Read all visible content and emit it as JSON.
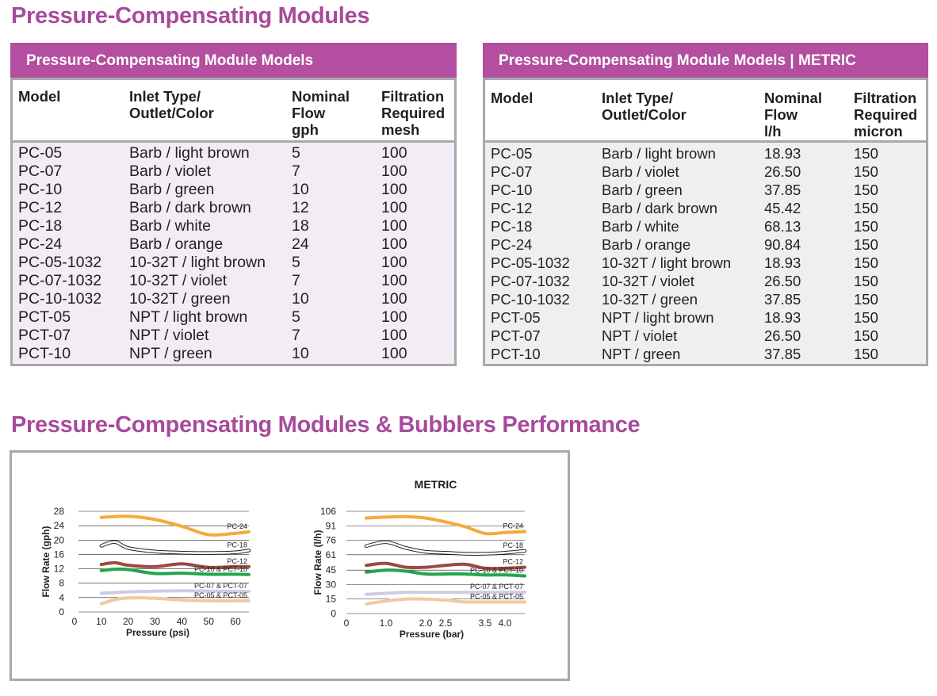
{
  "page": {
    "title": "Pressure-Compensating Modules",
    "performance_title": "Pressure-Compensating Modules & Bubblers Performance"
  },
  "table_us": {
    "title": "Pressure-Compensating Module Models",
    "columns": [
      "Model",
      "Inlet Type/\nOutlet/Color",
      "Nominal\nFlow\ngph",
      "Filtration\nRequired\nmesh"
    ],
    "rows": [
      [
        "PC-05",
        "Barb / light brown",
        "5",
        "100"
      ],
      [
        "PC-07",
        "Barb / violet",
        "7",
        "100"
      ],
      [
        "PC-10",
        "Barb / green",
        "10",
        "100"
      ],
      [
        "PC-12",
        "Barb / dark brown",
        "12",
        "100"
      ],
      [
        "PC-18",
        "Barb / white",
        "18",
        "100"
      ],
      [
        "PC-24",
        "Barb / orange",
        "24",
        "100"
      ],
      [
        "PC-05-1032",
        "10-32T / light brown",
        "5",
        "100"
      ],
      [
        "PC-07-1032",
        "10-32T / violet",
        "7",
        "100"
      ],
      [
        "PC-10-1032",
        "10-32T / green",
        "10",
        "100"
      ],
      [
        "PCT-05",
        "NPT / light brown",
        "5",
        "100"
      ],
      [
        "PCT-07",
        "NPT / violet",
        "7",
        "100"
      ],
      [
        "PCT-10",
        "NPT / green",
        "10",
        "100"
      ]
    ]
  },
  "table_metric": {
    "title": "Pressure-Compensating Module Models | METRIC",
    "columns": [
      "Model",
      "Inlet Type/\nOutlet/Color",
      "Nominal\nFlow\nl/h",
      "Filtration\nRequired\nmicron"
    ],
    "rows": [
      [
        "PC-05",
        "Barb / light brown",
        "18.93",
        "150"
      ],
      [
        "PC-07",
        "Barb / violet",
        "26.50",
        "150"
      ],
      [
        "PC-10",
        "Barb / green",
        "37.85",
        "150"
      ],
      [
        "PC-12",
        "Barb / dark brown",
        "45.42",
        "150"
      ],
      [
        "PC-18",
        "Barb / white",
        "68.13",
        "150"
      ],
      [
        "PC-24",
        "Barb / orange",
        "90.84",
        "150"
      ],
      [
        "PC-05-1032",
        "10-32T / light brown",
        "18.93",
        "150"
      ],
      [
        "PC-07-1032",
        "10-32T / violet",
        "26.50",
        "150"
      ],
      [
        "PC-10-1032",
        "10-32T / green",
        "37.85",
        "150"
      ],
      [
        "PCT-05",
        "NPT / light brown",
        "18.93",
        "150"
      ],
      [
        "PCT-07",
        "NPT / violet",
        "26.50",
        "150"
      ],
      [
        "PCT-10",
        "NPT / green",
        "37.85",
        "150"
      ]
    ]
  },
  "colors": {
    "accent": "#a84a9b",
    "header_bar": "#b34ea0",
    "border": "#a7a9ac",
    "us_table_bg": "#f2ecf4",
    "metric_table_bg": "#edf0ef"
  },
  "chart_data": [
    {
      "type": "line",
      "title": "",
      "xlabel": "Pressure (psi)",
      "ylabel": "Flow Rate (gph)",
      "xlim": [
        0,
        65
      ],
      "ylim": [
        0,
        28
      ],
      "xticks": [
        0,
        10,
        20,
        30,
        40,
        50,
        60
      ],
      "yticks": [
        0,
        4,
        8,
        12,
        16,
        20,
        24,
        28
      ],
      "grid": true,
      "series": [
        {
          "name": "PC-24",
          "color": "#f5a93a",
          "style": "solid",
          "x": [
            10,
            20,
            30,
            40,
            50,
            60,
            65
          ],
          "y": [
            26.3,
            26.6,
            25.7,
            23.8,
            21.5,
            21.9,
            22.3
          ]
        },
        {
          "name": "PC-18",
          "color": "#ffffff",
          "style": "outline",
          "x": [
            10,
            15,
            20,
            30,
            40,
            50,
            60,
            65
          ],
          "y": [
            18.4,
            19.5,
            17.8,
            16.8,
            16.5,
            16.4,
            16.6,
            17.1
          ]
        },
        {
          "name": "PC-12",
          "color": "#9b4a3f",
          "style": "solid",
          "x": [
            10,
            15,
            20,
            30,
            40,
            50,
            60,
            65
          ],
          "y": [
            13.2,
            13.7,
            13.0,
            12.6,
            13.4,
            12.4,
            12.6,
            12.6
          ]
        },
        {
          "name": "PC-10 & PCT-10",
          "color": "#22a64a",
          "style": "solid",
          "x": [
            10,
            15,
            20,
            30,
            40,
            50,
            60,
            65
          ],
          "y": [
            11.5,
            11.9,
            11.8,
            10.7,
            10.8,
            10.5,
            10.5,
            10.4
          ]
        },
        {
          "name": "PC-07 & PCT-07",
          "color": "#cfcbe4",
          "style": "solid",
          "x": [
            10,
            20,
            30,
            40,
            50,
            60,
            65
          ],
          "y": [
            5.2,
            5.6,
            5.8,
            5.9,
            5.8,
            5.7,
            5.7
          ]
        },
        {
          "name": "PC-05 & PCT-05",
          "color": "#f1c9a0",
          "style": "solid",
          "x": [
            10,
            15,
            20,
            30,
            40,
            50,
            60,
            65
          ],
          "y": [
            2.3,
            3.4,
            3.9,
            3.8,
            3.3,
            3.1,
            3.1,
            3.1
          ]
        }
      ]
    },
    {
      "type": "line",
      "title": "METRIC",
      "xlabel": "Pressure (bar)",
      "ylabel": "Flow Rate (l/h)",
      "xlim": [
        0,
        4.5
      ],
      "ylim": [
        0,
        106
      ],
      "xticks": [
        0,
        1.0,
        2.0,
        2.5,
        3.5,
        4.0
      ],
      "xticklabels": [
        "0",
        "1.0",
        "2.0",
        "2.5",
        "3.5",
        "4.0"
      ],
      "yticks": [
        0,
        15,
        30,
        45,
        61,
        76,
        91,
        106
      ],
      "grid": true,
      "series": [
        {
          "name": "PC-24",
          "color": "#f5a93a",
          "style": "solid",
          "x": [
            0.5,
            1.0,
            1.5,
            2.0,
            2.5,
            3.0,
            3.5,
            4.0,
            4.5
          ],
          "y": [
            99,
            100,
            100.5,
            99,
            95,
            90,
            83,
            84,
            85
          ]
        },
        {
          "name": "PC-18",
          "color": "#ffffff",
          "style": "outline",
          "x": [
            0.5,
            1.0,
            1.5,
            2.0,
            2.5,
            3.0,
            3.5,
            4.0,
            4.5
          ],
          "y": [
            70,
            74,
            68,
            64,
            63,
            62,
            62,
            63,
            65
          ]
        },
        {
          "name": "PC-12",
          "color": "#9b4a3f",
          "style": "solid",
          "x": [
            0.5,
            1.0,
            1.5,
            2.0,
            2.5,
            3.0,
            3.5,
            4.0,
            4.5
          ],
          "y": [
            50,
            52,
            48,
            48,
            50,
            51,
            47,
            47,
            48
          ]
        },
        {
          "name": "PC-10 & PCT-10",
          "color": "#22a64a",
          "style": "solid",
          "x": [
            0.5,
            1.0,
            1.5,
            2.0,
            2.5,
            3.0,
            3.5,
            4.0,
            4.5
          ],
          "y": [
            43,
            45,
            44,
            41,
            41,
            41,
            40,
            40,
            39
          ]
        },
        {
          "name": "PC-07 & PCT-07",
          "color": "#cfcbe4",
          "style": "solid",
          "x": [
            0.5,
            1.0,
            1.5,
            2.0,
            2.5,
            3.0,
            3.5,
            4.0,
            4.5
          ],
          "y": [
            20,
            21,
            22,
            22,
            22,
            22,
            22,
            22,
            22
          ]
        },
        {
          "name": "PC-05 & PCT-05",
          "color": "#f1c9a0",
          "style": "solid",
          "x": [
            0.5,
            1.0,
            1.5,
            2.0,
            2.5,
            3.0,
            3.5,
            4.0,
            4.5
          ],
          "y": [
            10,
            13,
            15,
            15,
            14,
            12,
            12,
            12,
            12
          ]
        }
      ]
    }
  ]
}
